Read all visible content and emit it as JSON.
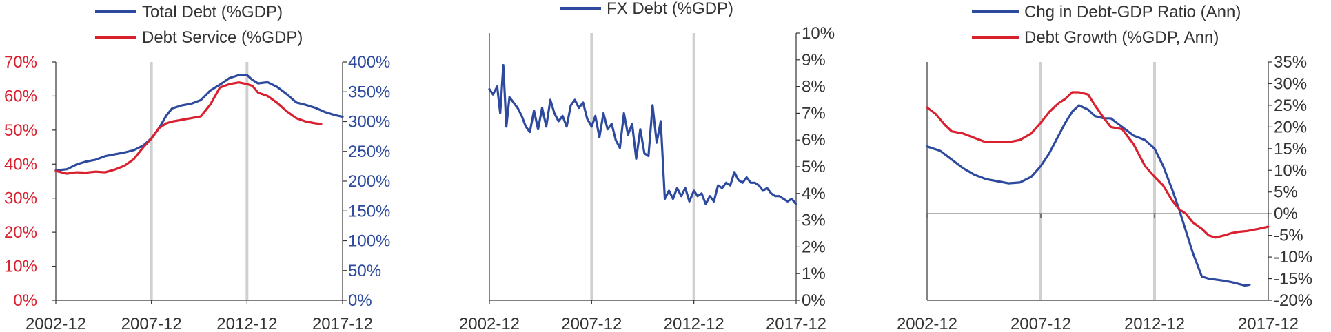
{
  "colors": {
    "blue": "#2e4a9e",
    "red": "#d9202f",
    "axis": "#333333",
    "vline": "#d0d0d0",
    "tick_label": "#333333"
  },
  "chart_data": [
    {
      "type": "line",
      "legend": [
        "Total Debt (%GDP)",
        "Debt Service (%GDP)"
      ],
      "x_ticks": [
        "2002-12",
        "2007-12",
        "2012-12",
        "2017-12"
      ],
      "x_range": [
        2002.92,
        2017.92
      ],
      "vlines": [
        2007.92,
        2012.92
      ],
      "y_left": {
        "ticks": [
          "0%",
          "10%",
          "20%",
          "30%",
          "40%",
          "50%",
          "60%",
          "70%"
        ],
        "range": [
          0,
          70
        ],
        "color": "#d9202f"
      },
      "y_right": {
        "ticks": [
          "0%",
          "50%",
          "100%",
          "150%",
          "200%",
          "250%",
          "300%",
          "350%",
          "400%"
        ],
        "range": [
          0,
          400
        ],
        "color": "#2e4a9e"
      },
      "series": [
        {
          "name": "Total Debt (%GDP)",
          "axis": "right",
          "color": "#2e4a9e",
          "x": [
            2002.92,
            2003.5,
            2004.0,
            2004.5,
            2005.0,
            2005.5,
            2006.0,
            2006.5,
            2007.0,
            2007.5,
            2007.92,
            2008.3,
            2008.7,
            2009.0,
            2009.5,
            2010.0,
            2010.5,
            2011.0,
            2011.5,
            2012.0,
            2012.5,
            2012.92,
            2013.2,
            2013.5,
            2014.0,
            2014.5,
            2015.0,
            2015.5,
            2016.0,
            2016.5,
            2017.0,
            2017.5,
            2017.92
          ],
          "values": [
            218,
            220,
            228,
            233,
            236,
            242,
            245,
            248,
            252,
            260,
            272,
            288,
            310,
            322,
            327,
            330,
            336,
            352,
            362,
            373,
            378,
            378,
            370,
            364,
            366,
            358,
            346,
            332,
            328,
            323,
            316,
            311,
            308
          ]
        },
        {
          "name": "Debt Service (%GDP)",
          "axis": "left",
          "color": "#d9202f",
          "x": [
            2002.92,
            2003.5,
            2004.0,
            2004.5,
            2005.0,
            2005.5,
            2006.0,
            2006.5,
            2007.0,
            2007.5,
            2007.92,
            2008.3,
            2008.7,
            2009.0,
            2009.5,
            2010.0,
            2010.5,
            2011.0,
            2011.5,
            2012.0,
            2012.5,
            2012.92,
            2013.2,
            2013.5,
            2014.0,
            2014.5,
            2015.0,
            2015.5,
            2016.0,
            2016.5,
            2016.8
          ],
          "values": [
            38.0,
            37.2,
            37.6,
            37.5,
            37.8,
            37.6,
            38.4,
            39.5,
            41.5,
            45.0,
            47.5,
            50.5,
            52.0,
            52.5,
            53.0,
            53.5,
            54.0,
            57.5,
            62.5,
            63.5,
            64.0,
            63.5,
            63.0,
            61.0,
            60.0,
            58.0,
            55.5,
            53.5,
            52.5,
            52.0,
            51.8
          ]
        }
      ]
    },
    {
      "type": "line",
      "legend": [
        "FX Debt (%GDP)"
      ],
      "x_ticks": [
        "2002-12",
        "2007-12",
        "2012-12",
        "2017-12"
      ],
      "x_range": [
        2002.92,
        2017.92
      ],
      "vlines": [
        2007.92,
        2012.92
      ],
      "y_right": {
        "ticks": [
          "0%",
          "1%",
          "2%",
          "3%",
          "4%",
          "5%",
          "6%",
          "7%",
          "8%",
          "9%",
          "10%"
        ],
        "range": [
          0,
          10
        ],
        "color": "#333333"
      },
      "series": [
        {
          "name": "FX Debt (%GDP)",
          "axis": "right",
          "color": "#2e4a9e",
          "x": [
            2002.92,
            2003.1,
            2003.3,
            2003.45,
            2003.6,
            2003.75,
            2003.9,
            2004.1,
            2004.3,
            2004.5,
            2004.7,
            2004.9,
            2005.1,
            2005.3,
            2005.5,
            2005.7,
            2005.9,
            2006.1,
            2006.3,
            2006.5,
            2006.7,
            2006.9,
            2007.1,
            2007.3,
            2007.5,
            2007.7,
            2007.92,
            2008.1,
            2008.3,
            2008.5,
            2008.7,
            2008.9,
            2009.1,
            2009.3,
            2009.5,
            2009.7,
            2009.9,
            2010.1,
            2010.3,
            2010.5,
            2010.7,
            2010.9,
            2011.1,
            2011.3,
            2011.5,
            2011.7,
            2011.9,
            2012.1,
            2012.3,
            2012.5,
            2012.7,
            2012.92,
            2013.1,
            2013.3,
            2013.5,
            2013.7,
            2013.9,
            2014.1,
            2014.3,
            2014.5,
            2014.7,
            2014.9,
            2015.1,
            2015.3,
            2015.5,
            2015.7,
            2015.9,
            2016.1,
            2016.3,
            2016.5,
            2016.7,
            2016.9,
            2017.1,
            2017.3,
            2017.5,
            2017.7,
            2017.92
          ],
          "values": [
            7.9,
            7.7,
            8.0,
            7.0,
            8.8,
            6.5,
            7.6,
            7.4,
            7.2,
            6.9,
            6.5,
            6.3,
            7.1,
            6.4,
            7.2,
            6.5,
            7.5,
            7.0,
            6.7,
            6.9,
            6.5,
            7.3,
            7.5,
            7.2,
            7.4,
            6.8,
            6.5,
            6.9,
            6.1,
            7.0,
            6.4,
            6.6,
            6.0,
            5.7,
            7.0,
            6.2,
            6.6,
            5.3,
            6.4,
            5.5,
            5.4,
            7.3,
            5.9,
            6.7,
            3.8,
            4.1,
            3.8,
            4.2,
            3.9,
            4.2,
            3.7,
            4.1,
            3.9,
            4.0,
            3.6,
            3.9,
            3.7,
            4.3,
            4.2,
            4.4,
            4.3,
            4.8,
            4.5,
            4.4,
            4.6,
            4.4,
            4.4,
            4.3,
            4.1,
            4.2,
            4.0,
            3.9,
            3.9,
            3.8,
            3.7,
            3.8,
            3.6
          ]
        }
      ]
    },
    {
      "type": "line",
      "legend": [
        "Chg in Debt-GDP Ratio (Ann)",
        "Debt Growth (%GDP, Ann)"
      ],
      "x_ticks": [
        "2002-12",
        "2007-12",
        "2012-12",
        "2017-12"
      ],
      "x_range": [
        2002.92,
        2017.92
      ],
      "vlines": [
        2007.92,
        2012.92
      ],
      "zero_line": true,
      "y_right": {
        "ticks": [
          "-20%",
          "-15%",
          "-10%",
          "-5%",
          "0%",
          "5%",
          "10%",
          "15%",
          "20%",
          "25%",
          "30%",
          "35%"
        ],
        "range": [
          -20,
          35
        ],
        "color": "#333333"
      },
      "series": [
        {
          "name": "Chg in Debt-GDP Ratio (Ann)",
          "axis": "right",
          "color": "#2e4a9e",
          "x": [
            2002.92,
            2003.5,
            2004.0,
            2004.5,
            2005.0,
            2005.5,
            2006.0,
            2006.5,
            2007.0,
            2007.5,
            2007.92,
            2008.3,
            2008.7,
            2009.0,
            2009.3,
            2009.6,
            2010.0,
            2010.3,
            2010.7,
            2011.0,
            2011.5,
            2012.0,
            2012.5,
            2012.92,
            2013.3,
            2013.7,
            2014.0,
            2014.3,
            2014.6,
            2015.0,
            2015.3,
            2015.6,
            2016.0,
            2016.3,
            2016.6,
            2016.9,
            2017.1
          ],
          "values": [
            15.5,
            14.5,
            12.5,
            10.5,
            9.0,
            8.0,
            7.5,
            7.0,
            7.2,
            8.5,
            11.0,
            14.0,
            18.0,
            21.0,
            23.5,
            25.0,
            24.0,
            22.5,
            22.0,
            22.0,
            20.0,
            18.0,
            17.0,
            15.0,
            11.0,
            5.5,
            1.0,
            -4.0,
            -9.0,
            -14.5,
            -15.0,
            -15.2,
            -15.5,
            -15.8,
            -16.2,
            -16.6,
            -16.4
          ]
        },
        {
          "name": "Debt Growth (%GDP, Ann)",
          "axis": "right",
          "color": "#d9202f",
          "x": [
            2002.92,
            2003.3,
            2003.7,
            2004.0,
            2004.5,
            2005.0,
            2005.5,
            2006.0,
            2006.5,
            2007.0,
            2007.5,
            2007.92,
            2008.3,
            2008.7,
            2009.0,
            2009.3,
            2009.6,
            2010.0,
            2010.3,
            2010.7,
            2011.0,
            2011.5,
            2012.0,
            2012.5,
            2012.92,
            2013.3,
            2013.7,
            2014.0,
            2014.3,
            2014.6,
            2015.0,
            2015.3,
            2015.6,
            2016.0,
            2016.3,
            2016.6,
            2017.0,
            2017.5,
            2017.92
          ],
          "values": [
            24.5,
            23.0,
            20.5,
            19.0,
            18.5,
            17.5,
            16.5,
            16.5,
            16.5,
            17.0,
            18.5,
            21.0,
            23.5,
            25.5,
            26.5,
            28.0,
            28.0,
            27.5,
            25.0,
            22.0,
            20.0,
            19.5,
            16.0,
            11.0,
            8.5,
            6.5,
            3.0,
            1.0,
            0.0,
            -2.0,
            -3.5,
            -5.0,
            -5.5,
            -5.0,
            -4.5,
            -4.2,
            -4.0,
            -3.5,
            -3.0
          ]
        }
      ]
    }
  ]
}
